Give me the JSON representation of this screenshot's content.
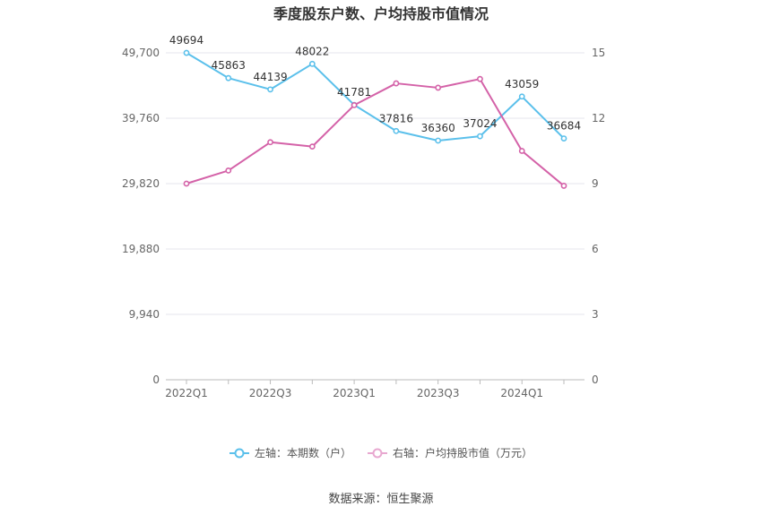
{
  "chart_data": {
    "type": "line",
    "title": "季度股东户数、户均持股市值情况",
    "x": [
      "2022Q1",
      "2022Q2",
      "2022Q3",
      "2022Q4",
      "2023Q1",
      "2023Q2",
      "2023Q3",
      "2023Q4",
      "2024Q1",
      "2024Q2"
    ],
    "x_tick_labels": [
      "2022Q1",
      "2022Q3",
      "2023Q1",
      "2023Q3",
      "2024Q1"
    ],
    "left_axis": {
      "ticks": [
        "0",
        "9,940",
        "19,880",
        "29,820",
        "39,760",
        "49,700"
      ],
      "ylim": [
        0,
        49700
      ]
    },
    "right_axis": {
      "ticks": [
        "0",
        "3",
        "6",
        "9",
        "12",
        "15"
      ],
      "ylim": [
        0,
        15
      ]
    },
    "grid": true,
    "legend_position": "bottom",
    "series": [
      {
        "name": "左轴：本期数（户）",
        "axis": "left",
        "color": "#5bc0eb",
        "values": [
          49694,
          45863,
          44139,
          48022,
          41781,
          37816,
          36360,
          37024,
          43059,
          36684
        ],
        "labels": [
          "49694",
          "45863",
          "44139",
          "48022",
          "41781",
          "37816",
          "36360",
          "37024",
          "43059",
          "36684"
        ]
      },
      {
        "name": "右轴：户均持股市值（万元）",
        "axis": "right",
        "color": "#d462a8",
        "values": [
          9.0,
          9.6,
          10.9,
          10.7,
          12.6,
          13.6,
          13.4,
          13.8,
          10.5,
          8.9
        ]
      }
    ]
  },
  "source": "数据来源：恒生聚源"
}
